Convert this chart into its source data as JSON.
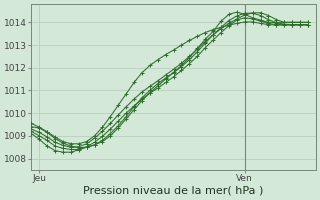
{
  "title": "Pression niveau de la mer( hPa )",
  "bg_color": "#d4e8d8",
  "grid_color": "#b0ccb8",
  "line_color": "#2d6e2d",
  "ylim": [
    1007.5,
    1014.8
  ],
  "xlim": [
    0,
    36
  ],
  "xtick_positions": [
    1,
    27
  ],
  "xtick_labels": [
    "Jeu",
    "Ven"
  ],
  "ytick_positions": [
    1008,
    1009,
    1010,
    1011,
    1012,
    1013,
    1014
  ],
  "vline_x": 27,
  "series": [
    [
      1009.2,
      1009.0,
      1008.8,
      1008.55,
      1008.45,
      1008.4,
      1008.4,
      1008.5,
      1008.6,
      1008.75,
      1009.0,
      1009.35,
      1009.75,
      1010.15,
      1010.55,
      1010.9,
      1011.2,
      1011.5,
      1011.8,
      1012.1,
      1012.45,
      1012.85,
      1013.25,
      1013.6,
      1014.05,
      1014.35,
      1014.45,
      1014.35,
      1014.2,
      1014.1,
      1014.0,
      1014.0,
      1014.0,
      1014.0,
      1014.0,
      1014.0
    ],
    [
      1009.1,
      1008.85,
      1008.55,
      1008.35,
      1008.28,
      1008.28,
      1008.38,
      1008.52,
      1008.72,
      1008.98,
      1009.3,
      1009.65,
      1010.0,
      1010.32,
      1010.62,
      1010.88,
      1011.1,
      1011.35,
      1011.6,
      1011.88,
      1012.18,
      1012.5,
      1012.88,
      1013.22,
      1013.55,
      1013.85,
      1014.1,
      1014.2,
      1014.15,
      1014.05,
      1013.95,
      1013.9,
      1013.9,
      1013.9,
      1013.9,
      1013.9
    ],
    [
      1009.3,
      1009.15,
      1008.95,
      1008.72,
      1008.58,
      1008.5,
      1008.52,
      1008.65,
      1008.9,
      1009.2,
      1009.55,
      1009.92,
      1010.28,
      1010.62,
      1010.93,
      1011.18,
      1011.42,
      1011.68,
      1011.93,
      1012.2,
      1012.5,
      1012.82,
      1013.15,
      1013.45,
      1013.72,
      1013.95,
      1014.15,
      1014.32,
      1014.42,
      1014.42,
      1014.3,
      1014.12,
      1014.0,
      1014.0,
      1014.0,
      1014.0
    ],
    [
      1009.4,
      1009.35,
      1009.15,
      1008.88,
      1008.68,
      1008.55,
      1008.48,
      1008.5,
      1008.6,
      1008.8,
      1009.1,
      1009.45,
      1009.85,
      1010.28,
      1010.68,
      1011.0,
      1011.3,
      1011.55,
      1011.78,
      1012.05,
      1012.35,
      1012.7,
      1013.08,
      1013.45,
      1013.78,
      1014.08,
      1014.28,
      1014.4,
      1014.4,
      1014.3,
      1014.12,
      1013.98,
      1013.92,
      1013.9,
      1013.9,
      1013.9
    ],
    [
      1009.55,
      1009.38,
      1009.18,
      1008.95,
      1008.75,
      1008.65,
      1008.65,
      1008.75,
      1009.0,
      1009.38,
      1009.85,
      1010.35,
      1010.85,
      1011.35,
      1011.78,
      1012.1,
      1012.35,
      1012.58,
      1012.78,
      1013.0,
      1013.2,
      1013.38,
      1013.55,
      1013.68,
      1013.78,
      1013.88,
      1013.95,
      1014.02,
      1014.02,
      1013.95,
      1013.9,
      1013.88,
      1013.88,
      1013.88,
      1013.88,
      1013.88
    ]
  ],
  "marker_series_indices": [
    0,
    1,
    2,
    3,
    4
  ],
  "title_fontsize": 8,
  "tick_fontsize": 6.5,
  "axis_color": "#556655"
}
